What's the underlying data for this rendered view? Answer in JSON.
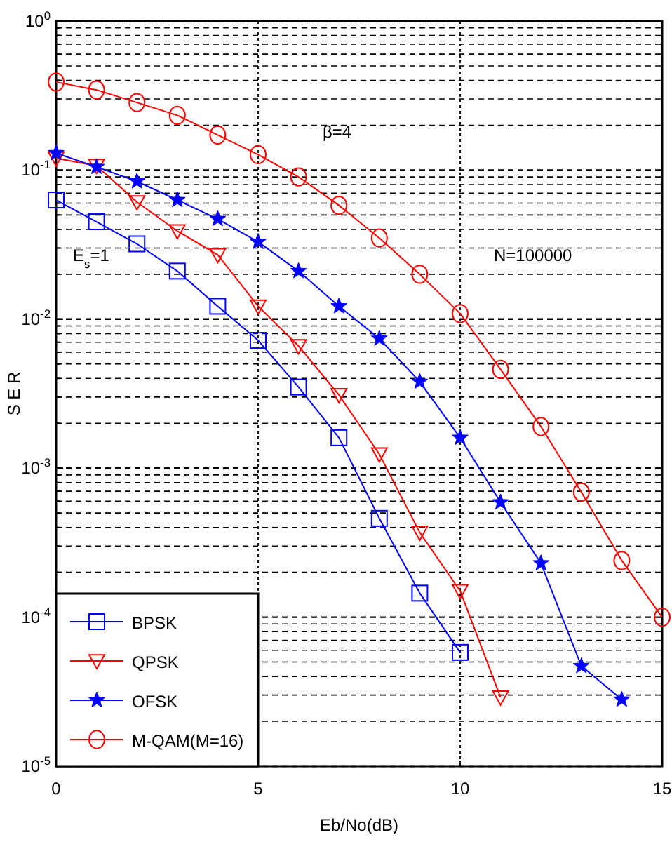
{
  "chart_data": {
    "type": "line",
    "xlabel": "Eb/No(dB)",
    "ylabel": "S E R",
    "log": "y",
    "grid": true,
    "legend": "bottom left",
    "xlim": [
      0,
      15
    ],
    "xticks": [
      0,
      5,
      10,
      15
    ],
    "ylim": [
      1e-05,
      1
    ],
    "yticks": [
      {
        "value": 1e-05,
        "label": "10$^{-5}$"
      },
      {
        "value": 2e-05,
        "label": null
      },
      {
        "value": 3e-05,
        "label": null
      },
      {
        "value": 4e-05,
        "label": null
      },
      {
        "value": 5e-05,
        "label": null
      },
      {
        "value": 6e-05,
        "label": null
      },
      {
        "value": 7e-05,
        "label": null
      },
      {
        "value": 8e-05,
        "label": null
      },
      {
        "value": 9e-05,
        "label": null
      },
      {
        "value": 0.0001,
        "label": "10$^{-4}$"
      },
      {
        "value": 0.0002,
        "label": null
      },
      {
        "value": 0.0003,
        "label": null
      },
      {
        "value": 0.0004,
        "label": null
      },
      {
        "value": 0.0005,
        "label": null
      },
      {
        "value": 0.0006,
        "label": null
      },
      {
        "value": 0.0007,
        "label": null
      },
      {
        "value": 0.0008,
        "label": null
      },
      {
        "value": 0.0009,
        "label": null
      },
      {
        "value": 0.001,
        "label": "10$^{-3}$"
      },
      {
        "value": 0.002,
        "label": null
      },
      {
        "value": 0.003,
        "label": null
      },
      {
        "value": 0.004,
        "label": null
      },
      {
        "value": 0.005,
        "label": null
      },
      {
        "value": 0.006,
        "label": null
      },
      {
        "value": 0.007,
        "label": null
      },
      {
        "value": 0.008,
        "label": null
      },
      {
        "value": 0.009,
        "label": null
      },
      {
        "value": 0.01,
        "label": "10$^{-2}$"
      },
      {
        "value": 0.02,
        "label": null
      },
      {
        "value": 0.03,
        "label": null
      },
      {
        "value": 0.04,
        "label": null
      },
      {
        "value": 0.05,
        "label": null
      },
      {
        "value": 0.06,
        "label": null
      },
      {
        "value": 0.07,
        "label": null
      },
      {
        "value": 0.08,
        "label": null
      },
      {
        "value": 0.09,
        "label": null
      },
      {
        "value": 0.1,
        "label": "10$^{-1}$"
      },
      {
        "value": 0.2,
        "label": null
      },
      {
        "value": 0.3,
        "label": null
      },
      {
        "value": 0.4,
        "label": null
      },
      {
        "value": 0.5,
        "label": null
      },
      {
        "value": 0.6,
        "label": null
      },
      {
        "value": 0.7,
        "label": null
      },
      {
        "value": 0.8,
        "label": null
      },
      {
        "value": 0.9,
        "label": null
      },
      {
        "value": 1,
        "label": "10$^{0}$"
      }
    ],
    "annotations": [
      "β=4",
      "E$_{s}$=1",
      "N=100000"
    ],
    "series": [
      {
        "name": "BPSK",
        "color": "#0000ff",
        "marker": "square",
        "x": [
          0,
          1,
          2,
          3,
          4,
          5,
          6,
          7,
          8,
          9,
          10
        ],
        "values": [
          0.063,
          0.045,
          0.032,
          0.021,
          0.0122,
          0.0072,
          0.0035,
          0.0016,
          0.00046,
          0.000145,
          5.8e-05
        ]
      },
      {
        "name": "QPSK",
        "color": "#ff0000",
        "marker": "triangle",
        "x": [
          0,
          1,
          2,
          3,
          4,
          5,
          6,
          7,
          8,
          9,
          10,
          11
        ],
        "values": [
          0.12,
          0.107,
          0.061,
          0.039,
          0.027,
          0.0122,
          0.0066,
          0.0031,
          0.00124,
          0.00037,
          0.00015,
          2.9e-05
        ]
      },
      {
        "name": "OFSK",
        "color": "#0000ff",
        "marker": "star",
        "x": [
          0,
          1,
          2,
          3,
          4,
          5,
          6,
          7,
          8,
          9,
          10,
          11,
          12,
          13,
          14
        ],
        "values": [
          0.13,
          0.105,
          0.084,
          0.063,
          0.047,
          0.033,
          0.021,
          0.0122,
          0.0074,
          0.0038,
          0.0016,
          0.00059,
          0.00023,
          4.7e-05,
          2.8e-05
        ]
      },
      {
        "name": "M-QAM(M=16)",
        "color": "#ff0000",
        "marker": "circle",
        "x": [
          0,
          1,
          2,
          3,
          4,
          5,
          6,
          7,
          8,
          9,
          10,
          11,
          12,
          13,
          14,
          15
        ],
        "values": [
          0.39,
          0.345,
          0.284,
          0.233,
          0.172,
          0.127,
          0.09,
          0.058,
          0.035,
          0.02,
          0.0109,
          0.0046,
          0.0019,
          0.00069,
          0.00024,
          0.0001
        ]
      }
    ]
  }
}
